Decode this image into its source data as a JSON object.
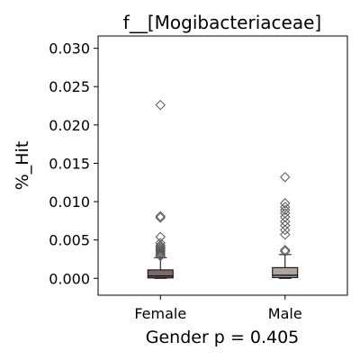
{
  "chart_data": {
    "type": "box",
    "title": "f__[Mogibacteriaceae]",
    "xlabel": "Gender p = 0.405",
    "ylabel": "%_Hit",
    "ylim": [
      -0.0022,
      0.0316
    ],
    "y_ticks": [
      0.0,
      0.005,
      0.01,
      0.015,
      0.02,
      0.025,
      0.03
    ],
    "y_tick_labels": [
      "0.000",
      "0.005",
      "0.010",
      "0.015",
      "0.020",
      "0.025",
      "0.030"
    ],
    "grid": false,
    "categories": [
      "Female",
      "Male"
    ],
    "boxes": [
      {
        "name": "Female",
        "whisker_low": 0.0,
        "q1": 5e-05,
        "median": 0.0003,
        "q3": 0.0011,
        "whisker_high": 0.0027,
        "color": "#7a6b66",
        "outliers": [
          0.0226,
          0.0081,
          0.0079,
          0.0054,
          0.0046,
          0.0043,
          0.0041,
          0.0039,
          0.0037,
          0.0035,
          0.0033,
          0.0031,
          0.0029
        ]
      },
      {
        "name": "Male",
        "whisker_low": 0.0,
        "q1": 0.0001,
        "median": 0.0004,
        "q3": 0.0014,
        "whisker_high": 0.0031,
        "color": "#b0a59e",
        "outliers": [
          0.0132,
          0.0098,
          0.0093,
          0.0089,
          0.0085,
          0.008,
          0.0074,
          0.0069,
          0.0063,
          0.0057,
          0.0037,
          0.0035
        ]
      }
    ]
  }
}
